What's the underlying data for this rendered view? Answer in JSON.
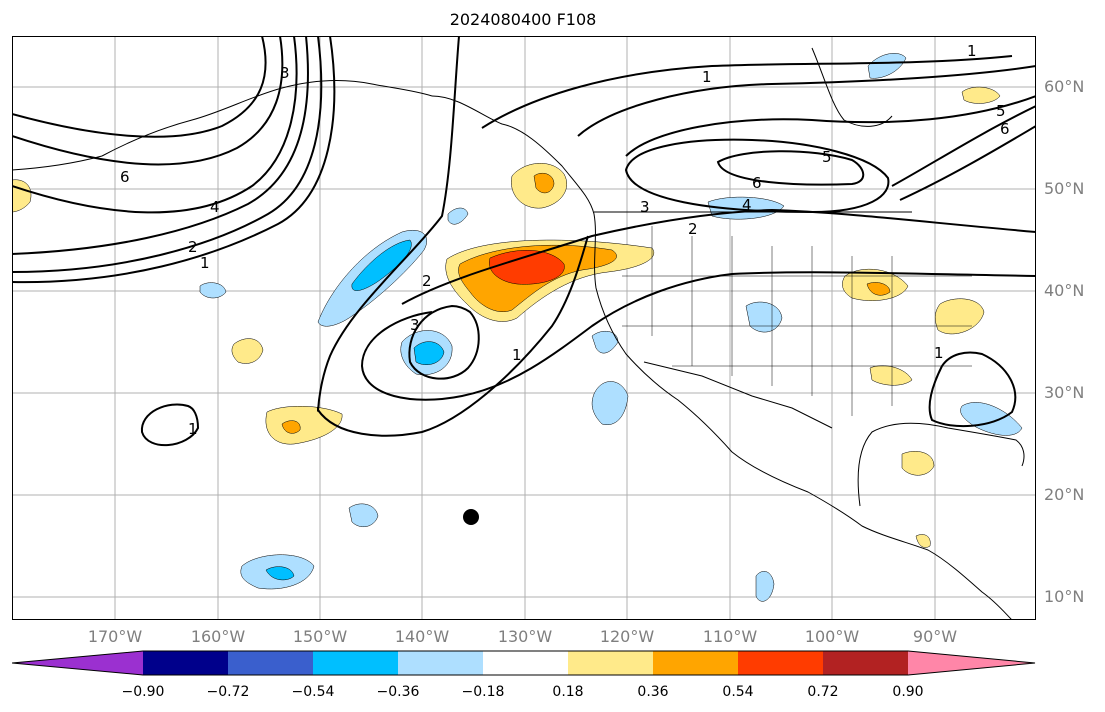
{
  "title": "2024080400 F108",
  "map": {
    "lat_labels": [
      "60°N",
      "50°N",
      "40°N",
      "30°N",
      "20°N",
      "10°N"
    ],
    "lon_labels": [
      "170°W",
      "160°W",
      "150°W",
      "140°W",
      "130°W",
      "120°W",
      "110°W",
      "100°W",
      "90°W"
    ],
    "contour_labels": [
      "6",
      "4",
      "2",
      "1",
      "3",
      "1",
      "2",
      "3",
      "6",
      "5",
      "4",
      "2",
      "1",
      "3",
      "1",
      "1",
      "5",
      "6",
      "1"
    ],
    "colors": {
      "pos_weak": "#ffea8a",
      "pos_mid": "#ffa500",
      "pos_strong": "#ff3c00",
      "neg_weak": "#aedfff",
      "neg_mid": "#00bfff"
    }
  },
  "colorbar": {
    "ticks": [
      "−0.90",
      "−0.72",
      "−0.54",
      "−0.36",
      "−0.18",
      "0.18",
      "0.36",
      "0.54",
      "0.72",
      "0.90"
    ],
    "colors": [
      "#9b30d0",
      "#00008b",
      "#3a5fcd",
      "#00bfff",
      "#aedfff",
      "#ffffff",
      "#ffea8a",
      "#ffa500",
      "#ff3c00",
      "#b22222",
      "#ff86a8"
    ]
  }
}
